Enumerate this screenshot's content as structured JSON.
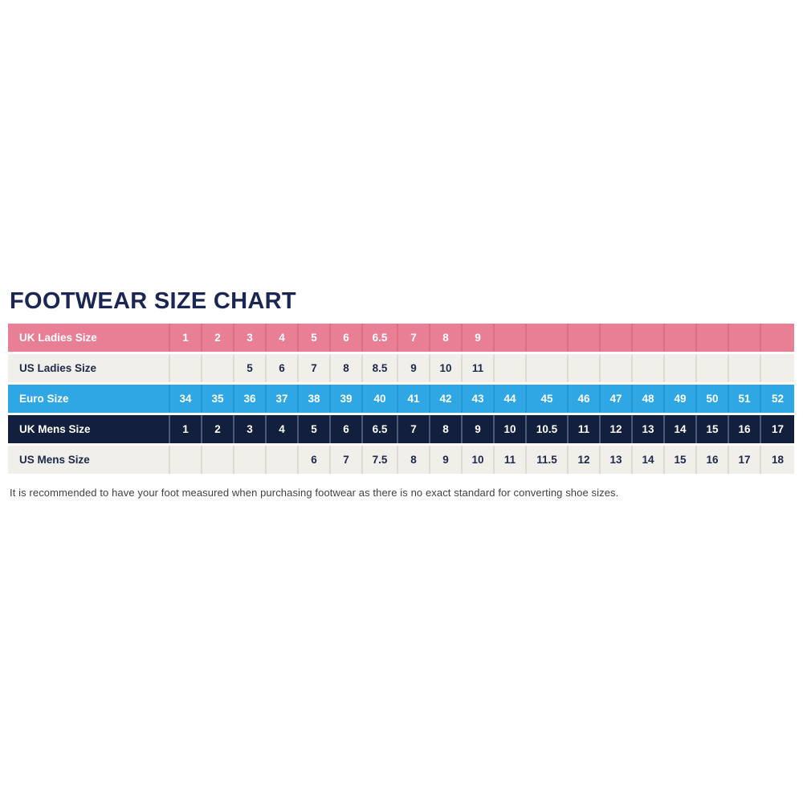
{
  "page": {
    "title": "FOOTWEAR SIZE CHART",
    "footnote": "It is recommended to have your foot measured when purchasing footwear as there is no exact standard for converting shoe sizes."
  },
  "colors": {
    "title_navy": "#1b2653",
    "row_pink": "#e97f95",
    "row_blue": "#2fa7e4",
    "row_navy": "#121f3d",
    "row_cream": "#f0efe9",
    "cell_text_dark": "#20294d",
    "footnote_gray": "#414141"
  },
  "chart_data": {
    "type": "table",
    "title": "FOOTWEAR SIZE CHART",
    "columns_count": 19,
    "rows": [
      {
        "label": "UK Ladies Size",
        "style": "pink",
        "values": [
          "1",
          "2",
          "3",
          "4",
          "5",
          "6",
          "6.5",
          "7",
          "8",
          "9",
          "",
          "",
          "",
          "",
          "",
          "",
          "",
          "",
          ""
        ]
      },
      {
        "label": "US Ladies Size",
        "style": "cream",
        "values": [
          "",
          "",
          "5",
          "6",
          "7",
          "8",
          "8.5",
          "9",
          "10",
          "11",
          "",
          "",
          "",
          "",
          "",
          "",
          "",
          "",
          ""
        ]
      },
      {
        "label": "Euro Size",
        "style": "blue",
        "values": [
          "34",
          "35",
          "36",
          "37",
          "38",
          "39",
          "40",
          "41",
          "42",
          "43",
          "44",
          "45",
          "46",
          "47",
          "48",
          "49",
          "50",
          "51",
          "52"
        ]
      },
      {
        "label": "UK Mens Size",
        "style": "navy",
        "values": [
          "1",
          "2",
          "3",
          "4",
          "5",
          "6",
          "6.5",
          "7",
          "8",
          "9",
          "10",
          "10.5",
          "11",
          "12",
          "13",
          "14",
          "15",
          "16",
          "17"
        ]
      },
      {
        "label": "US Mens Size",
        "style": "cream",
        "values": [
          "",
          "",
          "",
          "",
          "6",
          "7",
          "7.5",
          "8",
          "9",
          "10",
          "11",
          "11.5",
          "12",
          "13",
          "14",
          "15",
          "16",
          "17",
          "18"
        ]
      }
    ]
  }
}
